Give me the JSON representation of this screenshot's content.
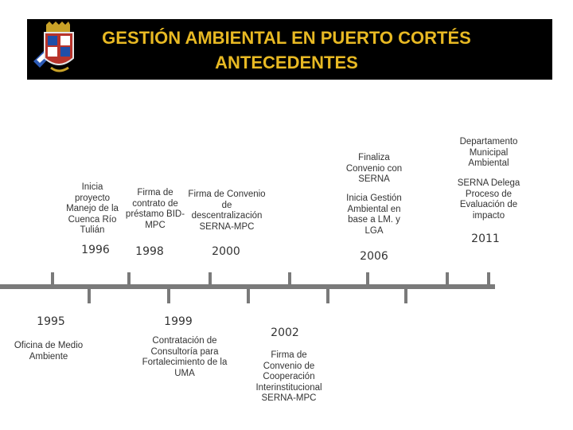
{
  "header": {
    "line1": "GESTIÓN AMBIENTAL EN PUERTO CORTÉS",
    "line2": "ANTECEDENTES",
    "background": "#000000",
    "title_color": "#e8b923"
  },
  "timeline": {
    "line_color": "#7a7a7a",
    "events": [
      {
        "year": "1996",
        "text": "Inicia proyecto Manejo de la Cuenca Río Tulián"
      },
      {
        "year": "1998",
        "text": "Firma de contrato de préstamo BID- MPC"
      },
      {
        "year": "",
        "text": "Firma de Convenio de descentralización SERNA-MPC"
      },
      {
        "year": "2000",
        "text": ""
      },
      {
        "year": "2006",
        "text": "Finaliza Convenio con SERNA"
      },
      {
        "year": "",
        "text": "Inicia Gestión Ambiental en base a LM. y LGA"
      },
      {
        "year": "2011",
        "text": "Departamento Municipal Ambiental"
      },
      {
        "year": "",
        "text": "SERNA Delega Proceso de Evaluación de impacto"
      },
      {
        "year": "1995",
        "text": "Oficina de Medio Ambiente"
      },
      {
        "year": "1999",
        "text": "Contratación de Consultoría para Fortalecimiento de la UMA"
      },
      {
        "year": "2002",
        "text": "Firma de Convenio de Cooperación Interinstitucional SERNA-MPC"
      }
    ]
  }
}
